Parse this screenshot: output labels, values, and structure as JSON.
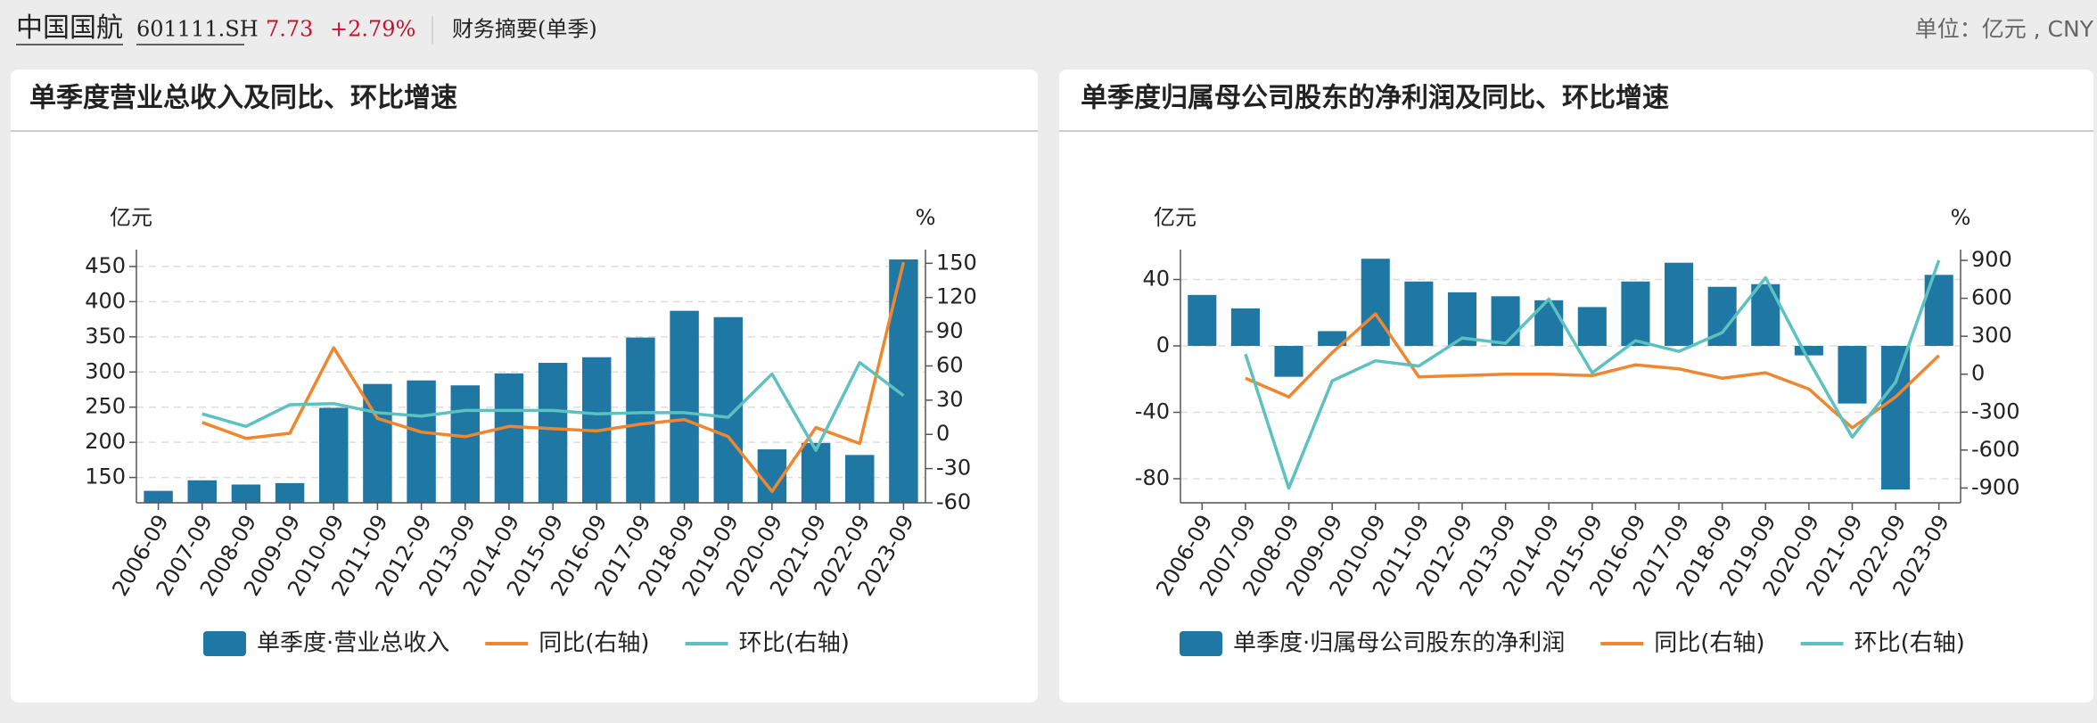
{
  "header": {
    "name": "中国国航",
    "code": "601111.SH",
    "price": "7.73",
    "change": "+2.79%",
    "section": "财务摘要(单季)",
    "unit": "单位：亿元 , CNY"
  },
  "chart_data": [
    {
      "type": "combo",
      "title": "单季度营业总收入及同比、环比增速",
      "y_label": "亿元",
      "y2_label": "%",
      "categories": [
        "2006-09",
        "2007-09",
        "2008-09",
        "2009-09",
        "2010-09",
        "2011-09",
        "2012-09",
        "2013-09",
        "2014-09",
        "2015-09",
        "2016-09",
        "2017-09",
        "2018-09",
        "2019-09",
        "2020-09",
        "2021-09",
        "2022-09",
        "2023-09"
      ],
      "ylim": [
        114,
        474
      ],
      "yticks": [
        150,
        200,
        250,
        300,
        350,
        400,
        450
      ],
      "y2lim": [
        -60,
        162
      ],
      "y2ticks": [
        -60,
        -30,
        0,
        30,
        60,
        90,
        120,
        150
      ],
      "grid": true,
      "series": [
        {
          "name": "单季度·营业总收入",
          "color": "#1f77a4",
          "type": "bar",
          "values": [
            131,
            146,
            140,
            142,
            249,
            283,
            288,
            281,
            298,
            313,
            321,
            349,
            387,
            378,
            190,
            199,
            182,
            460
          ]
        },
        {
          "name": "同比(右轴)",
          "color": "#f0862f",
          "type": "line",
          "axis": "y2",
          "values": [
            null,
            10.5,
            -3.5,
            1,
            76,
            14,
            2,
            -2,
            7,
            5,
            3,
            9,
            13,
            -2,
            -50,
            6,
            -8,
            151
          ]
        },
        {
          "name": "环比(右轴)",
          "color": "#5cc1c0",
          "type": "line",
          "axis": "y2",
          "values": [
            null,
            18,
            7,
            26,
            27,
            19,
            16,
            21,
            21,
            21,
            18,
            19,
            19,
            15,
            53,
            -14,
            63,
            34
          ]
        }
      ]
    },
    {
      "type": "combo",
      "title": "单季度归属母公司股东的净利润及同比、环比增速",
      "y_label": "亿元",
      "y2_label": "%",
      "categories": [
        "2006-09",
        "2007-09",
        "2008-09",
        "2009-09",
        "2010-09",
        "2011-09",
        "2012-09",
        "2013-09",
        "2014-09",
        "2015-09",
        "2016-09",
        "2017-09",
        "2018-09",
        "2019-09",
        "2020-09",
        "2021-09",
        "2022-09",
        "2023-09"
      ],
      "ylim": [
        -94.5,
        58
      ],
      "yticks": [
        -80,
        -40,
        0,
        40
      ],
      "y2lim": [
        -1017,
        985
      ],
      "y2ticks": [
        -900,
        -600,
        -300,
        0,
        300,
        600,
        900
      ],
      "grid": true,
      "series": [
        {
          "name": "单季度·归属母公司股东的净利润",
          "color": "#1f77a4",
          "type": "bar",
          "values": [
            30.7,
            22.6,
            -18.6,
            8.9,
            52.5,
            38.8,
            32.3,
            29.9,
            27.5,
            23.4,
            38.8,
            50.1,
            35.6,
            37.2,
            -5.7,
            -34.7,
            -86.5,
            42.8
          ]
        },
        {
          "name": "同比(右轴)",
          "color": "#f0862f",
          "type": "line",
          "axis": "y2",
          "values": [
            null,
            -32,
            -180,
            170,
            477,
            -21,
            -11,
            0,
            0,
            -11,
            74,
            42,
            -32,
            11,
            -117,
            -424,
            -180,
            148
          ]
        },
        {
          "name": "环比(右轴)",
          "color": "#5cc1c0",
          "type": "line",
          "axis": "y2",
          "values": [
            null,
            159,
            -901,
            -53,
            106,
            64,
            286,
            244,
            594,
            11,
            265,
            180,
            329,
            763,
            106,
            -498,
            -64,
            901
          ]
        }
      ]
    }
  ]
}
